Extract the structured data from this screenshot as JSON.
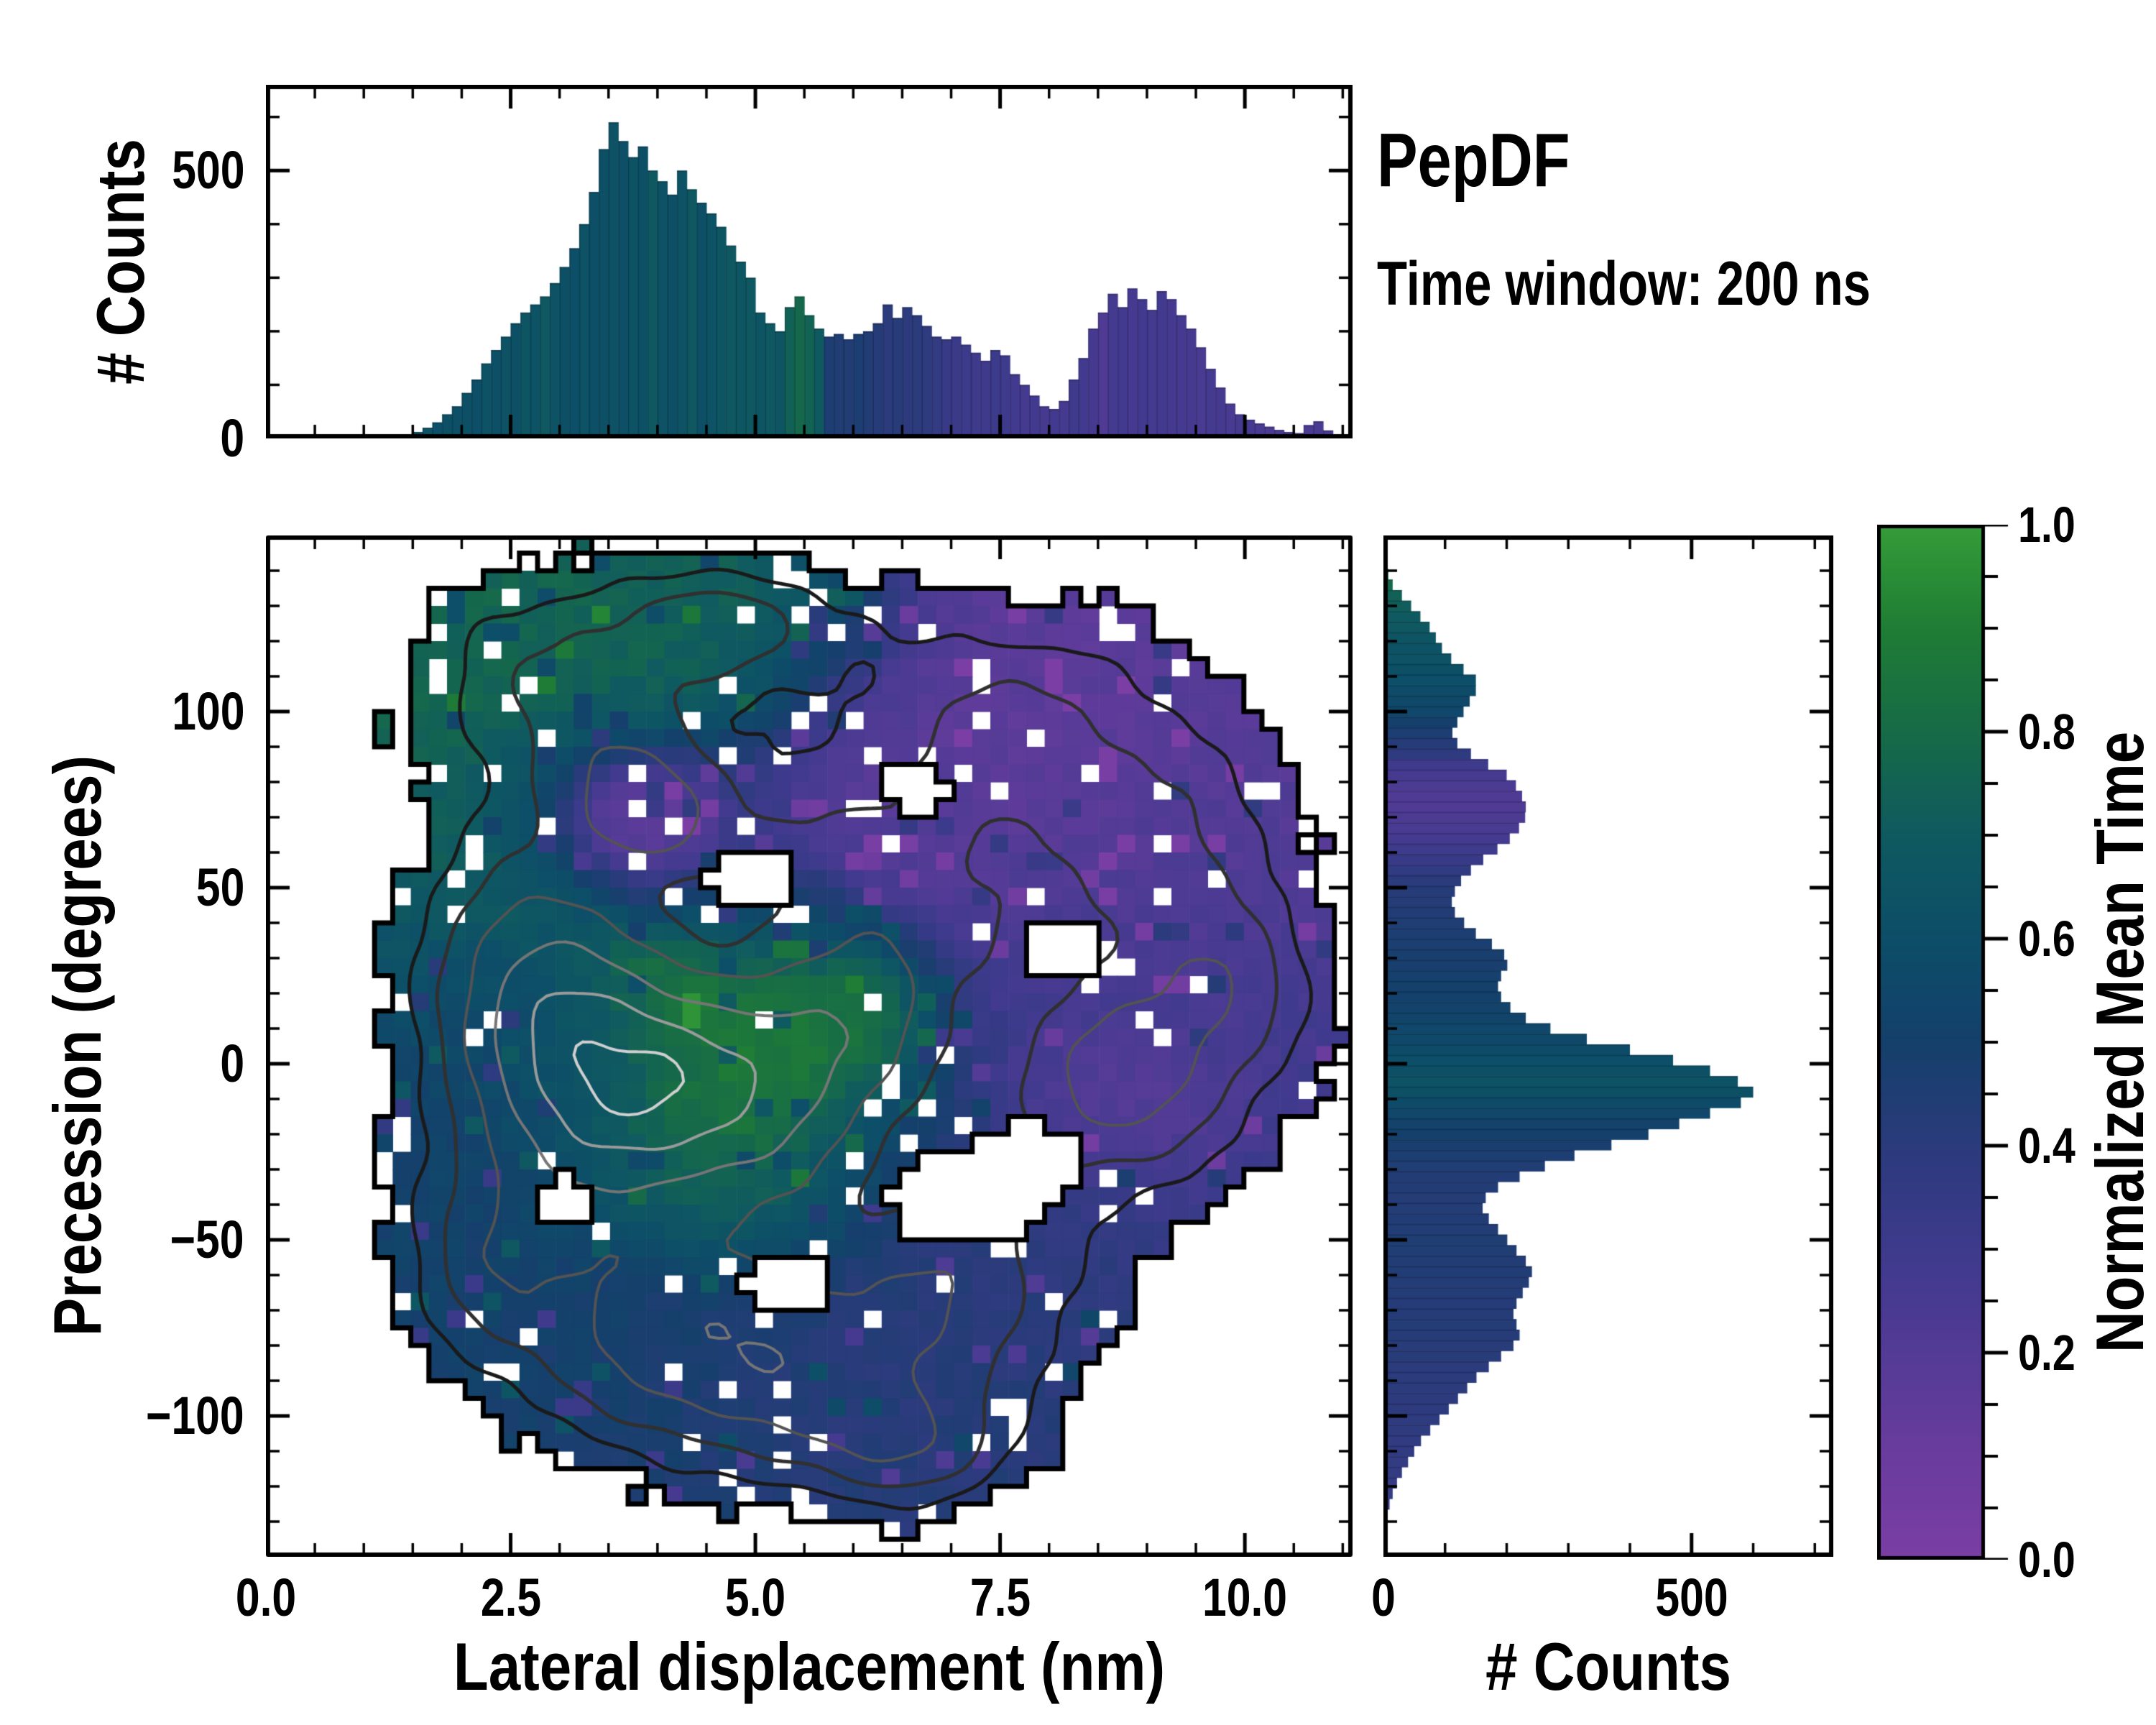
{
  "title": "PepDF",
  "subtitle": "Time window: 200 ns",
  "colormap": {
    "stops": [
      [
        0.0,
        "#7B3EA4"
      ],
      [
        0.1,
        "#6A3C9E"
      ],
      [
        0.2,
        "#533B96"
      ],
      [
        0.3,
        "#3E3A8C"
      ],
      [
        0.4,
        "#2B3B7C"
      ],
      [
        0.5,
        "#14406B"
      ],
      [
        0.6,
        "#0D4E68"
      ],
      [
        0.7,
        "#0F5A60"
      ],
      [
        0.8,
        "#176B47"
      ],
      [
        0.9,
        "#1F7D35"
      ],
      [
        1.0,
        "#359D38"
      ]
    ]
  },
  "chart_data": [
    {
      "id": "top_histogram",
      "type": "bar",
      "orientation": "vertical",
      "ylabel": "# Counts",
      "x_range": [
        0,
        11.1
      ],
      "y_range": [
        0,
        660
      ],
      "x_major_step": 2.5,
      "x_minor_step": 0.5,
      "y_ticks": [
        {
          "v": 0,
          "label": "0"
        },
        {
          "v": 500,
          "label": "500"
        }
      ],
      "y_minor_step": 100,
      "bin_start": 1.2,
      "bin_width": 0.1,
      "counts": [
        3,
        5,
        8,
        12,
        20,
        30,
        45,
        60,
        85,
        110,
        140,
        165,
        190,
        215,
        235,
        250,
        265,
        290,
        320,
        355,
        400,
        460,
        540,
        590,
        555,
        525,
        545,
        500,
        480,
        455,
        500,
        465,
        440,
        420,
        395,
        360,
        330,
        300,
        235,
        215,
        200,
        245,
        265,
        230,
        205,
        190,
        195,
        185,
        195,
        200,
        215,
        250,
        225,
        245,
        230,
        210,
        190,
        185,
        190,
        175,
        160,
        145,
        165,
        155,
        120,
        100,
        80,
        60,
        55,
        70,
        110,
        150,
        205,
        235,
        270,
        245,
        280,
        260,
        240,
        275,
        260,
        230,
        205,
        170,
        130,
        95,
        65,
        45,
        35,
        28,
        22,
        16,
        12,
        10,
        25,
        32,
        15,
        6
      ],
      "mean_time_values": [
        0.6,
        0.62,
        0.59,
        0.61,
        0.63,
        0.6,
        0.62,
        0.61,
        0.62,
        0.6,
        0.63,
        0.61,
        0.64,
        0.62,
        0.66,
        0.63,
        0.68,
        0.64,
        0.62,
        0.6,
        0.63,
        0.61,
        0.62,
        0.63,
        0.61,
        0.64,
        0.62,
        0.68,
        0.63,
        0.61,
        0.64,
        0.68,
        0.62,
        0.64,
        0.66,
        0.68,
        0.67,
        0.68,
        0.66,
        0.68,
        0.66,
        0.74,
        0.78,
        0.75,
        0.7,
        0.46,
        0.45,
        0.44,
        0.46,
        0.44,
        0.42,
        0.4,
        0.41,
        0.39,
        0.4,
        0.38,
        0.36,
        0.33,
        0.32,
        0.31,
        0.3,
        0.29,
        0.31,
        0.3,
        0.28,
        0.27,
        0.28,
        0.26,
        0.28,
        0.27,
        0.29,
        0.28,
        0.26,
        0.22,
        0.27,
        0.28,
        0.26,
        0.28,
        0.27,
        0.28,
        0.26,
        0.27,
        0.26,
        0.25,
        0.27,
        0.26,
        0.25,
        0.26,
        0.26,
        0.25,
        0.24,
        0.25,
        0.24,
        0.25,
        0.24,
        0.25,
        0.24,
        0.23
      ]
    },
    {
      "id": "main_heatmap",
      "type": "heatmap",
      "xlabel": "Lateral displacement (nm)",
      "ylabel": "Precession (degrees)",
      "x_range": [
        0,
        11.1
      ],
      "y_range": [
        -140,
        150
      ],
      "x_ticks": [
        {
          "v": 0.0,
          "label": "0.0"
        },
        {
          "v": 2.5,
          "label": "2.5"
        },
        {
          "v": 5.0,
          "label": "5.0"
        },
        {
          "v": 7.5,
          "label": "7.5"
        },
        {
          "v": 10.0,
          "label": "10.0"
        }
      ],
      "x_minor_step": 0.5,
      "y_ticks": [
        {
          "v": 100,
          "label": "100"
        },
        {
          "v": 50,
          "label": "50"
        },
        {
          "v": 0,
          "label": "0"
        },
        {
          "v": -50,
          "label": "−50"
        },
        {
          "v": -100,
          "label": "−100"
        }
      ],
      "y_minor_step": 10,
      "grid": {
        "nx": 60,
        "ny": 58
      },
      "seed": 7,
      "support_threshold": 0.09,
      "value_blobs": [
        [
          3.0,
          100,
          1.8,
          38,
          0.76,
          1.0
        ],
        [
          4.6,
          122,
          1.4,
          22,
          0.74,
          0.9
        ],
        [
          2.2,
          55,
          1.0,
          28,
          0.72,
          0.9
        ],
        [
          3.9,
          72,
          1.1,
          20,
          0.3,
          1.5
        ],
        [
          3.85,
          71,
          0.55,
          11,
          0.05,
          5.0
        ],
        [
          7.4,
          90,
          1.8,
          38,
          0.16,
          1.3
        ],
        [
          9.2,
          55,
          1.4,
          40,
          0.2,
          1.1
        ],
        [
          6.4,
          70,
          1.0,
          25,
          0.2,
          1.0
        ],
        [
          8.6,
          5,
          1.8,
          45,
          0.3,
          1.2
        ],
        [
          8.8,
          -8,
          0.8,
          16,
          0.16,
          2.2
        ],
        [
          4.9,
          -8,
          1.4,
          34,
          0.9,
          1.4
        ],
        [
          5.9,
          14,
          0.8,
          20,
          0.88,
          1.0
        ],
        [
          4.6,
          -40,
          1.0,
          16,
          0.72,
          0.9
        ],
        [
          3.4,
          -6,
          0.9,
          22,
          0.62,
          1.2
        ],
        [
          2.3,
          -15,
          0.9,
          45,
          0.52,
          1.0
        ],
        [
          3.6,
          -75,
          1.7,
          38,
          0.5,
          1.2
        ],
        [
          5.8,
          -85,
          2.0,
          32,
          0.42,
          1.1
        ],
        [
          7.2,
          -60,
          1.6,
          32,
          0.4,
          1.0
        ],
        [
          6.6,
          -105,
          1.2,
          20,
          0.42,
          0.9
        ],
        [
          1.9,
          25,
          0.8,
          20,
          0.6,
          0.8
        ],
        [
          5.3,
          40,
          0.8,
          16,
          0.55,
          0.8
        ],
        [
          6.3,
          -25,
          0.9,
          18,
          0.45,
          0.8
        ]
      ],
      "density_blobs": [
        [
          3.5,
          -5,
          1.35,
          40,
          1.0
        ],
        [
          2.6,
          30,
          1.0,
          35,
          0.45
        ],
        [
          3.9,
          72,
          0.9,
          20,
          0.52
        ],
        [
          3.2,
          105,
          1.5,
          30,
          0.4
        ],
        [
          4.8,
          125,
          1.2,
          16,
          0.35
        ],
        [
          7.5,
          90,
          1.7,
          35,
          0.42
        ],
        [
          9.2,
          55,
          1.2,
          35,
          0.35
        ],
        [
          8.7,
          -5,
          1.2,
          30,
          0.6
        ],
        [
          9.9,
          20,
          0.9,
          25,
          0.3
        ],
        [
          5.1,
          -10,
          1.2,
          35,
          0.6
        ],
        [
          6.1,
          15,
          1.0,
          28,
          0.45
        ],
        [
          4.2,
          -78,
          1.5,
          30,
          0.55
        ],
        [
          5.9,
          -90,
          1.6,
          28,
          0.45
        ],
        [
          7.1,
          -58,
          1.3,
          28,
          0.4
        ],
        [
          2.3,
          -55,
          0.9,
          30,
          0.35
        ],
        [
          6.6,
          -110,
          1.0,
          15,
          0.3
        ],
        [
          5.6,
          60,
          0.9,
          20,
          0.3
        ],
        [
          6.9,
          40,
          0.9,
          20,
          0.28
        ]
      ],
      "holes": [
        [
          7.15,
          -38,
          0.8,
          14
        ],
        [
          7.75,
          -28,
          0.6,
          11
        ],
        [
          4.95,
          52,
          0.45,
          9
        ],
        [
          6.6,
          78,
          0.35,
          7
        ],
        [
          8.15,
          32,
          0.4,
          8
        ],
        [
          3.05,
          -38,
          0.3,
          6
        ],
        [
          5.35,
          -62,
          0.45,
          8
        ]
      ],
      "contour_levels": [
        0.2,
        0.34,
        0.52,
        0.74,
        0.95,
        1.12
      ],
      "contour_colors": [
        "#1a1a1a",
        "#303030",
        "#535353",
        "#757575",
        "#9a9a9a",
        "#cfcfcf"
      ],
      "contour_widths": [
        5,
        5,
        4,
        4,
        4,
        4
      ]
    },
    {
      "id": "right_histogram",
      "type": "bar",
      "orientation": "horizontal",
      "xlabel": "# Counts",
      "x_range": [
        0,
        730
      ],
      "y_range": [
        -140,
        150
      ],
      "x_ticks": [
        {
          "v": 0,
          "label": "0"
        },
        {
          "v": 500,
          "label": "500"
        }
      ],
      "x_minor_step": 100,
      "y_major_step": 50,
      "y_minor_step": 10,
      "bin_start": 139,
      "bin_step": -3,
      "counts": [
        8,
        15,
        30,
        45,
        60,
        75,
        85,
        95,
        110,
        130,
        150,
        150,
        140,
        130,
        120,
        112,
        120,
        142,
        170,
        200,
        215,
        225,
        231,
        230,
        220,
        205,
        185,
        162,
        142,
        126,
        116,
        111,
        116,
        131,
        150,
        176,
        196,
        201,
        191,
        186,
        191,
        206,
        231,
        271,
        330,
        400,
        470,
        530,
        575,
        600,
        580,
        530,
        480,
        430,
        370,
        310,
        262,
        221,
        186,
        166,
        161,
        171,
        186,
        201,
        216,
        231,
        241,
        236,
        226,
        216,
        211,
        216,
        221,
        211,
        191,
        171,
        151,
        136,
        121,
        106,
        91,
        76,
        61,
        50,
        40,
        30,
        22,
        15,
        10,
        6
      ],
      "mean_time_values": [
        0.8,
        0.78,
        0.74,
        0.72,
        0.7,
        0.68,
        0.66,
        0.64,
        0.63,
        0.62,
        0.6,
        0.58,
        0.56,
        0.55,
        0.5,
        0.46,
        0.42,
        0.38,
        0.3,
        0.26,
        0.24,
        0.22,
        0.22,
        0.23,
        0.25,
        0.27,
        0.3,
        0.33,
        0.37,
        0.4,
        0.42,
        0.43,
        0.44,
        0.45,
        0.46,
        0.47,
        0.48,
        0.48,
        0.49,
        0.5,
        0.51,
        0.52,
        0.53,
        0.55,
        0.56,
        0.58,
        0.6,
        0.62,
        0.63,
        0.62,
        0.58,
        0.55,
        0.52,
        0.5,
        0.48,
        0.46,
        0.45,
        0.44,
        0.44,
        0.43,
        0.43,
        0.44,
        0.44,
        0.45,
        0.45,
        0.44,
        0.44,
        0.43,
        0.43,
        0.42,
        0.42,
        0.43,
        0.42,
        0.41,
        0.41,
        0.4,
        0.4,
        0.4,
        0.39,
        0.39,
        0.38,
        0.38,
        0.37,
        0.37,
        0.36,
        0.36,
        0.35,
        0.35,
        0.34,
        0.34
      ]
    },
    {
      "id": "colorbar",
      "type": "colorbar",
      "label": "Normalized Mean Time",
      "range": [
        0,
        1
      ],
      "ticks": [
        {
          "v": 0.0,
          "label": "0.0"
        },
        {
          "v": 0.2,
          "label": "0.2"
        },
        {
          "v": 0.4,
          "label": "0.4"
        },
        {
          "v": 0.6,
          "label": "0.6"
        },
        {
          "v": 0.8,
          "label": "0.8"
        },
        {
          "v": 1.0,
          "label": "1.0"
        }
      ],
      "minor_step": 0.05
    }
  ]
}
